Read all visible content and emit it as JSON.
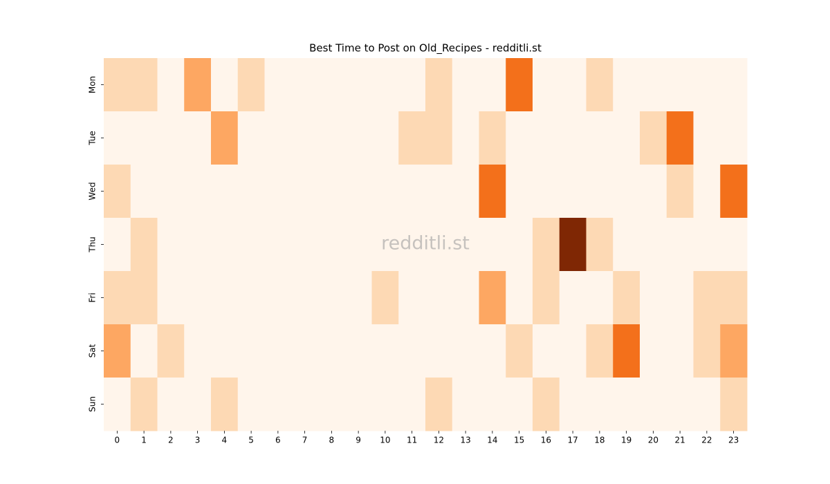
{
  "chart_data": {
    "type": "heatmap",
    "title": "Best Time to Post on Old_Recipes - redditli.st",
    "watermark": "redditli.st",
    "x": [
      0,
      1,
      2,
      3,
      4,
      5,
      6,
      7,
      8,
      9,
      10,
      11,
      12,
      13,
      14,
      15,
      16,
      17,
      18,
      19,
      20,
      21,
      22,
      23
    ],
    "y": [
      "Mon",
      "Tue",
      "Wed",
      "Thu",
      "Fri",
      "Sat",
      "Sun"
    ],
    "values": [
      [
        1,
        1,
        0,
        2,
        0,
        1,
        0,
        0,
        0,
        0,
        0,
        0,
        1,
        0,
        0,
        3,
        0,
        0,
        1,
        0,
        0,
        0,
        0,
        0
      ],
      [
        0,
        0,
        0,
        0,
        2,
        0,
        0,
        0,
        0,
        0,
        0,
        1,
        1,
        0,
        1,
        0,
        0,
        0,
        0,
        0,
        1,
        3,
        0,
        0
      ],
      [
        1,
        0,
        0,
        0,
        0,
        0,
        0,
        0,
        0,
        0,
        0,
        0,
        0,
        0,
        3,
        0,
        0,
        0,
        0,
        0,
        0,
        1,
        0,
        3
      ],
      [
        0,
        1,
        0,
        0,
        0,
        0,
        0,
        0,
        0,
        0,
        0,
        0,
        0,
        0,
        0,
        0,
        1,
        5,
        1,
        0,
        0,
        0,
        0,
        0
      ],
      [
        1,
        1,
        0,
        0,
        0,
        0,
        0,
        0,
        0,
        0,
        1,
        0,
        0,
        0,
        2,
        0,
        1,
        0,
        0,
        1,
        0,
        0,
        1,
        1
      ],
      [
        2,
        0,
        1,
        0,
        0,
        0,
        0,
        0,
        0,
        0,
        0,
        0,
        0,
        0,
        0,
        1,
        0,
        0,
        1,
        3,
        0,
        0,
        1,
        2
      ],
      [
        0,
        1,
        0,
        0,
        1,
        0,
        0,
        0,
        0,
        0,
        0,
        0,
        1,
        0,
        0,
        0,
        1,
        0,
        0,
        0,
        0,
        0,
        0,
        1
      ]
    ],
    "clim": [
      0,
      5
    ],
    "colormap": "Oranges"
  }
}
